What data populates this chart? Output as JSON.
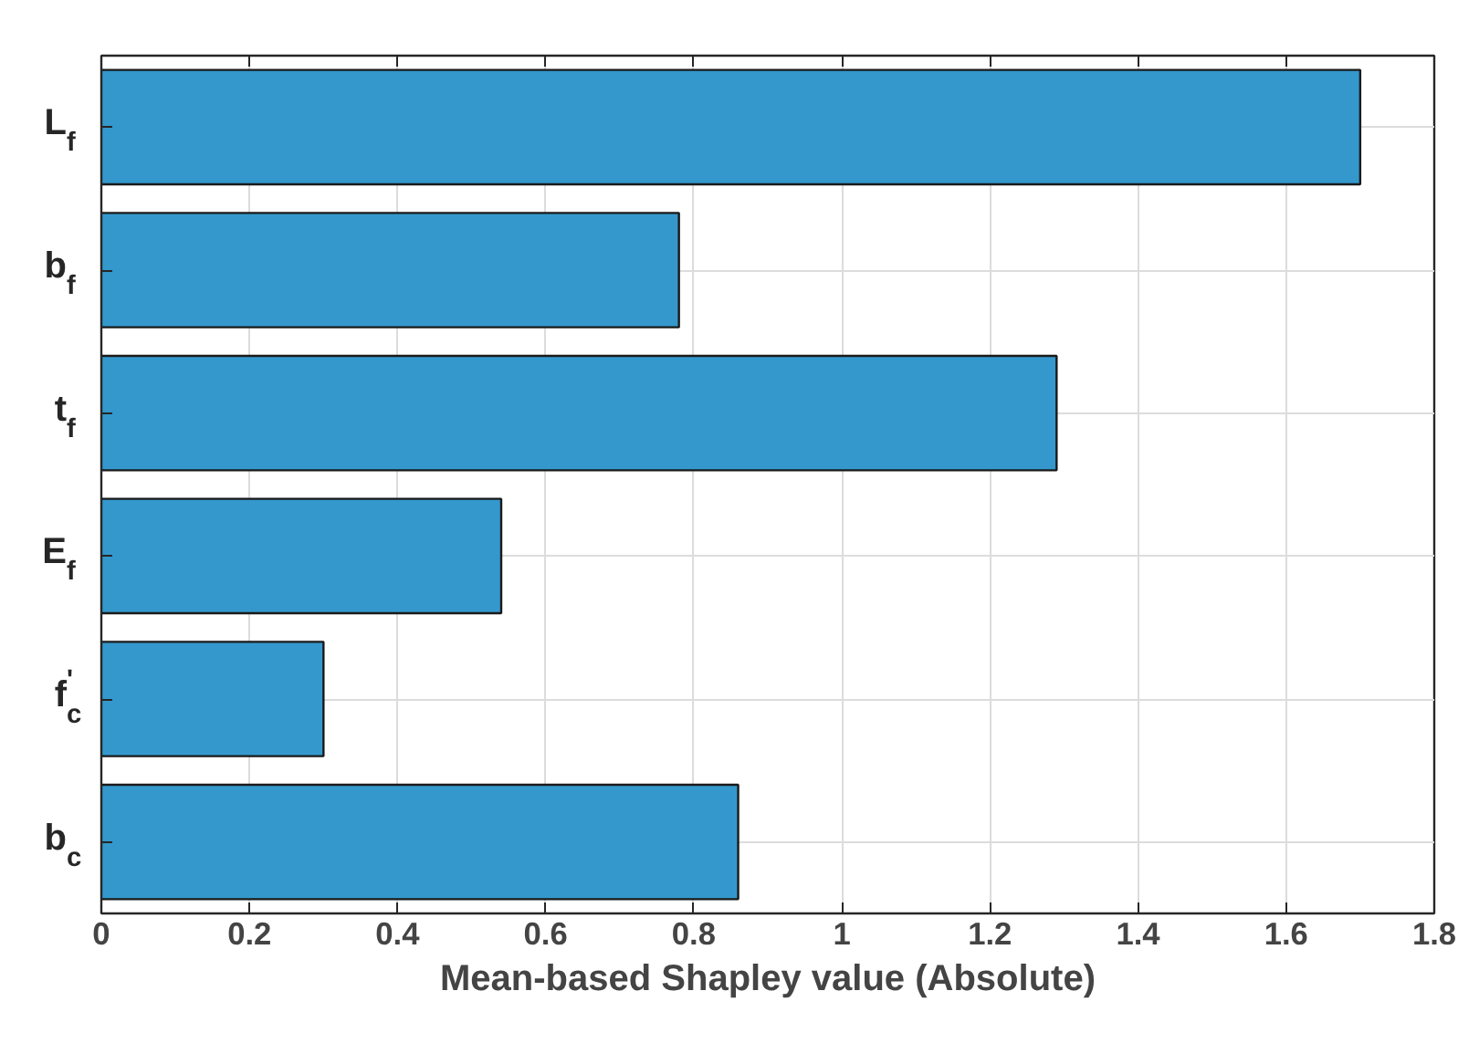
{
  "chart_data": {
    "type": "bar",
    "orientation": "horizontal",
    "categories": [
      "L$_{f}$",
      "b$_{f}$",
      "t$_{f}$",
      "E$_{f}$",
      "f$_{c}$$^{'}$",
      "b$_{c}$"
    ],
    "values": [
      1.7,
      0.78,
      1.29,
      0.54,
      0.3,
      0.86
    ],
    "color": "#3498cc",
    "xlabel": "Mean-based Shapley value (Absolute)",
    "xlim": [
      0,
      1.8
    ],
    "xticks": [
      0,
      0.2,
      0.4,
      0.6,
      0.8,
      1,
      1.2,
      1.4,
      1.6,
      1.8
    ],
    "grid": true
  }
}
